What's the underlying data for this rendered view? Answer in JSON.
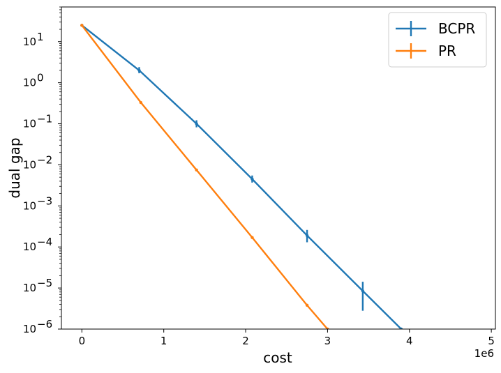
{
  "chart_data": {
    "type": "line",
    "xlabel": "cost",
    "ylabel": "dual gap",
    "x_multiplier": "1e6",
    "y_scale": "log",
    "xlim": [
      -250000,
      5050000
    ],
    "ylim": [
      1e-06,
      70
    ],
    "x_ticks": [
      {
        "value": 0,
        "label": "0"
      },
      {
        "value": 1000000,
        "label": "1"
      },
      {
        "value": 2000000,
        "label": "2"
      },
      {
        "value": 3000000,
        "label": "3"
      },
      {
        "value": 4000000,
        "label": "4"
      },
      {
        "value": 5000000,
        "label": "5"
      }
    ],
    "y_ticks": [
      {
        "exp": 1,
        "mantissa": "10",
        "sign": ""
      },
      {
        "exp": 0,
        "mantissa": "10",
        "sign": ""
      },
      {
        "exp": -1,
        "mantissa": "10",
        "sign": "−"
      },
      {
        "exp": -2,
        "mantissa": "10",
        "sign": "−"
      },
      {
        "exp": -3,
        "mantissa": "10",
        "sign": "−"
      },
      {
        "exp": -4,
        "mantissa": "10",
        "sign": "−"
      },
      {
        "exp": -5,
        "mantissa": "10",
        "sign": "−"
      },
      {
        "exp": -6,
        "mantissa": "10",
        "sign": "−"
      }
    ],
    "legend_position": "upper-right",
    "grid": false,
    "series": [
      {
        "name": "BCPR",
        "color": "#1f77b4",
        "points": [
          {
            "x": 0,
            "y": 25,
            "ylo": 25,
            "yhi": 25
          },
          {
            "x": 700000,
            "y": 2.0,
            "ylo": 1.7,
            "yhi": 2.4
          },
          {
            "x": 1400000,
            "y": 0.1,
            "ylo": 0.082,
            "yhi": 0.122
          },
          {
            "x": 2080000,
            "y": 0.0045,
            "ylo": 0.0037,
            "yhi": 0.0055
          },
          {
            "x": 2750000,
            "y": 0.00019,
            "ylo": 0.00013,
            "yhi": 0.00026
          },
          {
            "x": 3430000,
            "y": 8.5e-06,
            "ylo": 2.8e-06,
            "yhi": 1.42e-05
          },
          {
            "x": 3900000,
            "y": 1e-06,
            "ylo": 1e-06,
            "yhi": 1e-06
          }
        ]
      },
      {
        "name": "PR",
        "color": "#ff7f0e",
        "points": [
          {
            "x": 0,
            "y": 25,
            "ylo": 25,
            "yhi": 25
          },
          {
            "x": 720000,
            "y": 0.33,
            "ylo": 0.31,
            "yhi": 0.35
          },
          {
            "x": 1400000,
            "y": 0.0075,
            "ylo": 0.007,
            "yhi": 0.008
          },
          {
            "x": 2080000,
            "y": 0.00017,
            "ylo": 0.00016,
            "yhi": 0.00018
          },
          {
            "x": 2750000,
            "y": 3.8e-06,
            "ylo": 3.6e-06,
            "yhi": 4e-06
          },
          {
            "x": 3000000,
            "y": 1e-06,
            "ylo": 1e-06,
            "yhi": 1e-06
          }
        ]
      }
    ]
  }
}
